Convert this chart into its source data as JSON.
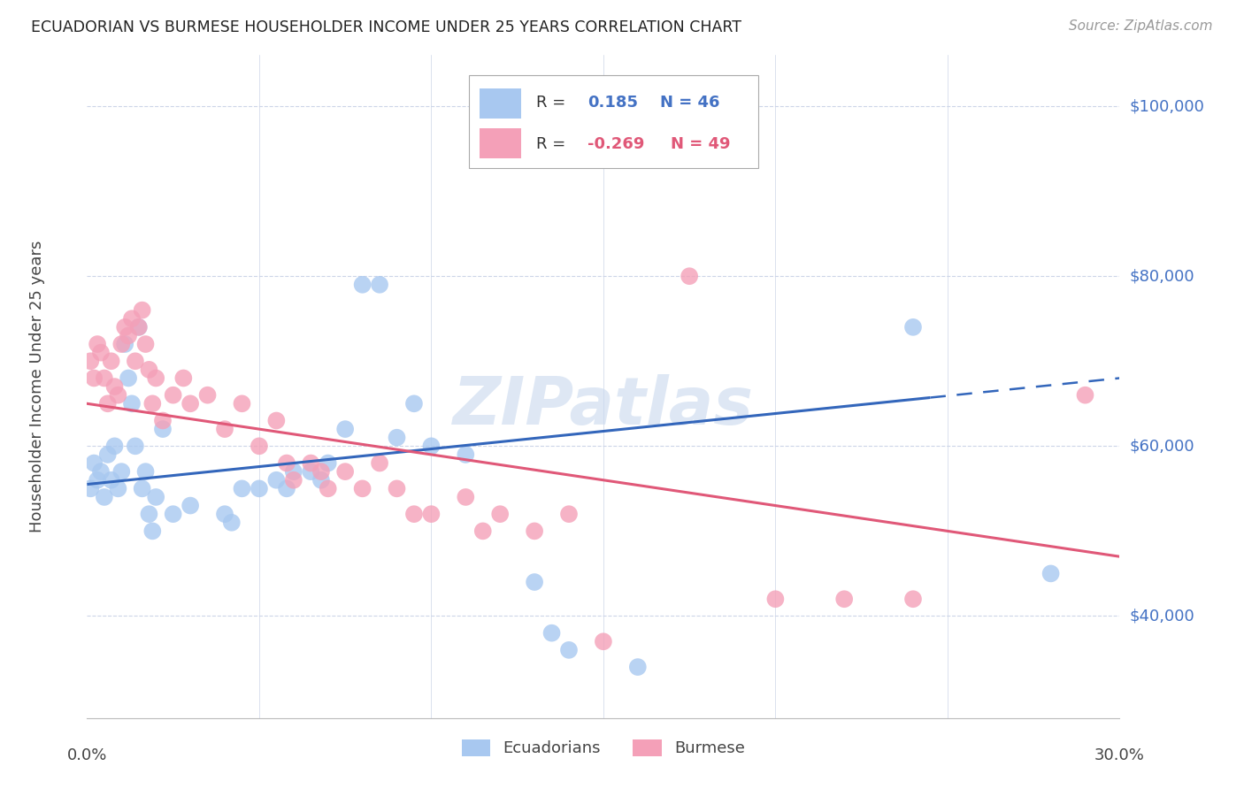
{
  "title": "ECUADORIAN VS BURMESE HOUSEHOLDER INCOME UNDER 25 YEARS CORRELATION CHART",
  "source": "Source: ZipAtlas.com",
  "ylabel": "Householder Income Under 25 years",
  "y_ticks": [
    40000,
    60000,
    80000,
    100000
  ],
  "y_tick_labels": [
    "$40,000",
    "$60,000",
    "$80,000",
    "$100,000"
  ],
  "x_min": 0.0,
  "x_max": 0.3,
  "y_min": 28000,
  "y_max": 106000,
  "ecuadorian_color": "#a8c8f0",
  "burmese_color": "#f4a0b8",
  "trend_ecuadorian_color": "#3366bb",
  "trend_burmese_color": "#e05878",
  "background_color": "#ffffff",
  "grid_color": "#ccd5e8",
  "watermark": "ZIPatlas",
  "watermark_color": "#c8d8ee",
  "ecuadorian_points": [
    [
      0.001,
      55000
    ],
    [
      0.002,
      58000
    ],
    [
      0.003,
      56000
    ],
    [
      0.004,
      57000
    ],
    [
      0.005,
      54000
    ],
    [
      0.006,
      59000
    ],
    [
      0.007,
      56000
    ],
    [
      0.008,
      60000
    ],
    [
      0.009,
      55000
    ],
    [
      0.01,
      57000
    ],
    [
      0.011,
      72000
    ],
    [
      0.012,
      68000
    ],
    [
      0.013,
      65000
    ],
    [
      0.014,
      60000
    ],
    [
      0.015,
      74000
    ],
    [
      0.016,
      55000
    ],
    [
      0.017,
      57000
    ],
    [
      0.018,
      52000
    ],
    [
      0.019,
      50000
    ],
    [
      0.02,
      54000
    ],
    [
      0.022,
      62000
    ],
    [
      0.025,
      52000
    ],
    [
      0.03,
      53000
    ],
    [
      0.04,
      52000
    ],
    [
      0.042,
      51000
    ],
    [
      0.045,
      55000
    ],
    [
      0.05,
      55000
    ],
    [
      0.055,
      56000
    ],
    [
      0.058,
      55000
    ],
    [
      0.06,
      57000
    ],
    [
      0.065,
      57000
    ],
    [
      0.068,
      56000
    ],
    [
      0.07,
      58000
    ],
    [
      0.075,
      62000
    ],
    [
      0.08,
      79000
    ],
    [
      0.085,
      79000
    ],
    [
      0.09,
      61000
    ],
    [
      0.095,
      65000
    ],
    [
      0.1,
      60000
    ],
    [
      0.11,
      59000
    ],
    [
      0.13,
      44000
    ],
    [
      0.135,
      38000
    ],
    [
      0.14,
      36000
    ],
    [
      0.16,
      34000
    ],
    [
      0.24,
      74000
    ],
    [
      0.28,
      45000
    ]
  ],
  "burmese_points": [
    [
      0.001,
      70000
    ],
    [
      0.002,
      68000
    ],
    [
      0.003,
      72000
    ],
    [
      0.004,
      71000
    ],
    [
      0.005,
      68000
    ],
    [
      0.006,
      65000
    ],
    [
      0.007,
      70000
    ],
    [
      0.008,
      67000
    ],
    [
      0.009,
      66000
    ],
    [
      0.01,
      72000
    ],
    [
      0.011,
      74000
    ],
    [
      0.012,
      73000
    ],
    [
      0.013,
      75000
    ],
    [
      0.014,
      70000
    ],
    [
      0.015,
      74000
    ],
    [
      0.016,
      76000
    ],
    [
      0.017,
      72000
    ],
    [
      0.018,
      69000
    ],
    [
      0.019,
      65000
    ],
    [
      0.02,
      68000
    ],
    [
      0.022,
      63000
    ],
    [
      0.025,
      66000
    ],
    [
      0.028,
      68000
    ],
    [
      0.03,
      65000
    ],
    [
      0.035,
      66000
    ],
    [
      0.04,
      62000
    ],
    [
      0.045,
      65000
    ],
    [
      0.05,
      60000
    ],
    [
      0.055,
      63000
    ],
    [
      0.058,
      58000
    ],
    [
      0.06,
      56000
    ],
    [
      0.065,
      58000
    ],
    [
      0.068,
      57000
    ],
    [
      0.07,
      55000
    ],
    [
      0.075,
      57000
    ],
    [
      0.08,
      55000
    ],
    [
      0.085,
      58000
    ],
    [
      0.09,
      55000
    ],
    [
      0.095,
      52000
    ],
    [
      0.1,
      52000
    ],
    [
      0.11,
      54000
    ],
    [
      0.115,
      50000
    ],
    [
      0.12,
      52000
    ],
    [
      0.13,
      50000
    ],
    [
      0.14,
      52000
    ],
    [
      0.15,
      37000
    ],
    [
      0.175,
      80000
    ],
    [
      0.2,
      42000
    ],
    [
      0.22,
      42000
    ],
    [
      0.24,
      42000
    ],
    [
      0.29,
      66000
    ]
  ]
}
